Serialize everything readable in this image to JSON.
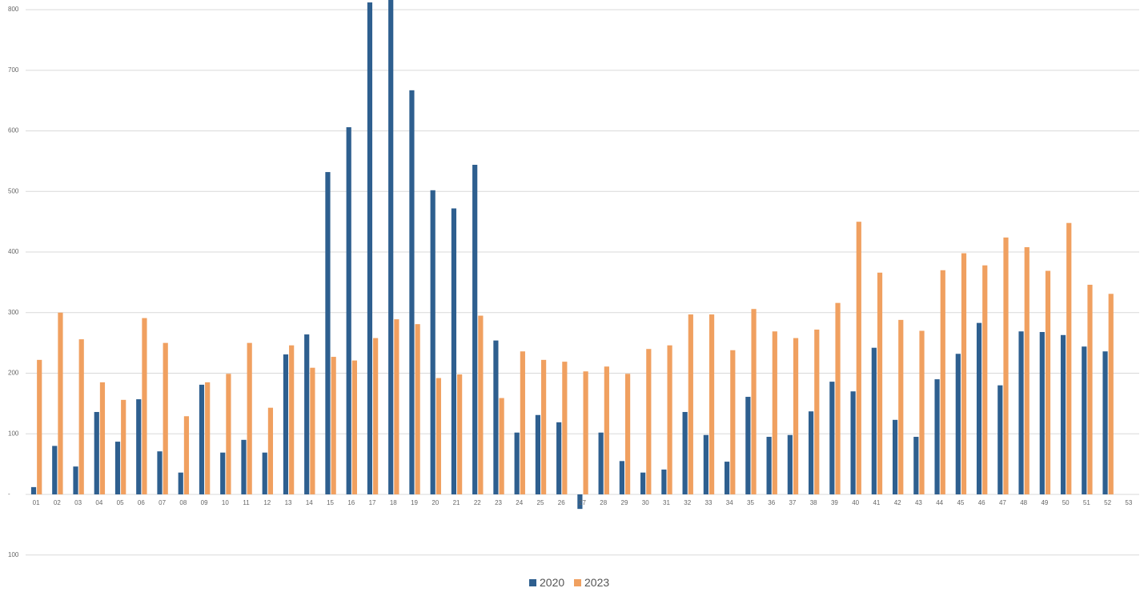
{
  "chart_data": {
    "type": "bar",
    "categories": [
      "01",
      "02",
      "03",
      "04",
      "05",
      "06",
      "07",
      "08",
      "09",
      "10",
      "11",
      "12",
      "13",
      "14",
      "15",
      "16",
      "17",
      "18",
      "19",
      "20",
      "21",
      "22",
      "23",
      "24",
      "25",
      "26",
      "27",
      "28",
      "29",
      "30",
      "31",
      "32",
      "33",
      "34",
      "35",
      "36",
      "37",
      "38",
      "39",
      "40",
      "41",
      "42",
      "43",
      "44",
      "45",
      "46",
      "47",
      "48",
      "49",
      "50",
      "51",
      "52",
      "53"
    ],
    "series": [
      {
        "name": "2020",
        "color": "#2e5f8f",
        "values": [
          12,
          80,
          46,
          136,
          87,
          157,
          71,
          36,
          181,
          69,
          90,
          69,
          231,
          264,
          532,
          606,
          812,
          820,
          667,
          502,
          472,
          544,
          254,
          102,
          131,
          119,
          -24,
          102,
          55,
          36,
          41,
          136,
          98,
          54,
          161,
          95,
          98,
          137,
          186,
          170,
          242,
          123,
          95,
          190,
          232,
          283,
          180,
          269,
          268,
          263,
          244,
          236,
          null
        ]
      },
      {
        "name": "2023",
        "color": "#f0a060",
        "values": [
          222,
          300,
          256,
          185,
          156,
          291,
          250,
          129,
          185,
          199,
          250,
          143,
          246,
          209,
          227,
          221,
          258,
          289,
          281,
          192,
          198,
          295,
          159,
          236,
          222,
          219,
          203,
          211,
          199,
          240,
          246,
          297,
          297,
          238,
          306,
          269,
          258,
          272,
          316,
          450,
          366,
          288,
          270,
          370,
          398,
          378,
          424,
          408,
          369,
          448,
          346,
          331,
          null
        ]
      }
    ],
    "ylim": [
      -100,
      816
    ],
    "yticks": [
      {
        "value": -100,
        "label": "100"
      },
      {
        "value": 0,
        "label": "-"
      },
      100,
      200,
      300,
      400,
      500,
      600,
      700,
      800
    ],
    "grid": true,
    "legend": "bottom"
  }
}
